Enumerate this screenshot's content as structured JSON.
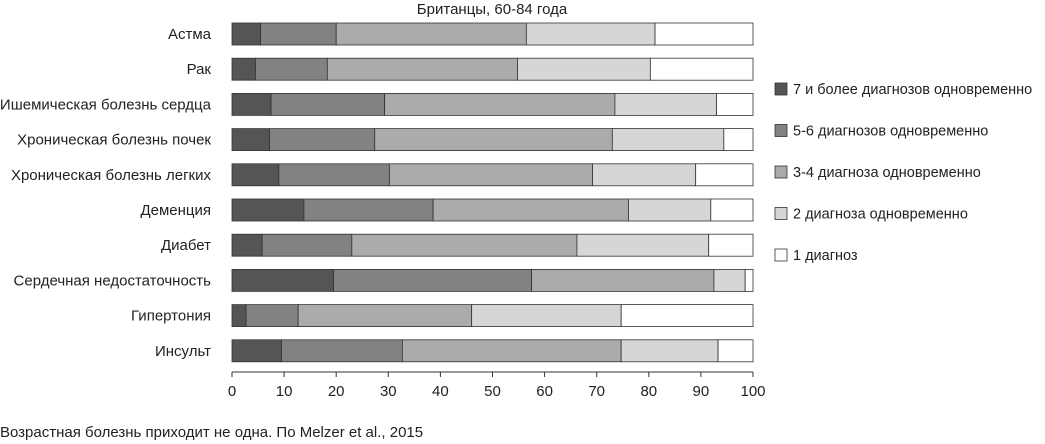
{
  "chart_data": {
    "type": "bar",
    "orientation": "horizontal",
    "stacked": true,
    "title": "Британцы, 60-84 года",
    "categories": [
      "Астма",
      "Рак",
      "Ишемическая болезнь сердца",
      "Хроническая болезнь почек",
      "Хроническая болезнь легких",
      "Деменция",
      "Диабет",
      "Сердечная недостаточность",
      "Гипертония",
      "Инсульт"
    ],
    "series": [
      {
        "name": "7 и более диагнозов одновременно",
        "color": "#555555",
        "values": [
          5.5,
          4.5,
          7.5,
          7.2,
          9.0,
          13.8,
          5.8,
          19.5,
          2.7,
          9.5
        ]
      },
      {
        "name": "5-6 диагнозов одновременно",
        "color": "#828282",
        "values": [
          14.5,
          13.8,
          21.8,
          20.2,
          21.2,
          24.8,
          17.2,
          38.0,
          10.0,
          23.2
        ]
      },
      {
        "name": "3-4 диагноза одновременно",
        "color": "#ababab",
        "values": [
          36.5,
          36.5,
          44.2,
          45.6,
          39.0,
          37.5,
          43.2,
          35.0,
          33.3,
          42.0
        ]
      },
      {
        "name": "2 диагноза одновременно",
        "color": "#d6d6d6",
        "values": [
          24.7,
          25.5,
          19.5,
          21.4,
          19.8,
          15.8,
          25.3,
          6.0,
          28.7,
          18.6
        ]
      },
      {
        "name": "1 диагноз",
        "color": "#ffffff",
        "values": [
          18.8,
          19.7,
          7.0,
          5.6,
          11.0,
          8.1,
          8.5,
          1.5,
          25.3,
          6.7
        ]
      }
    ],
    "xlim": [
      0,
      100
    ],
    "xticks": [
      "0",
      "10",
      "20",
      "30",
      "40",
      "50",
      "60",
      "70",
      "80",
      "90",
      "100"
    ],
    "grid": false,
    "legend_position": "right"
  },
  "caption": "Возрастная болезнь приходит не одна. По Melzer et al., 2015"
}
